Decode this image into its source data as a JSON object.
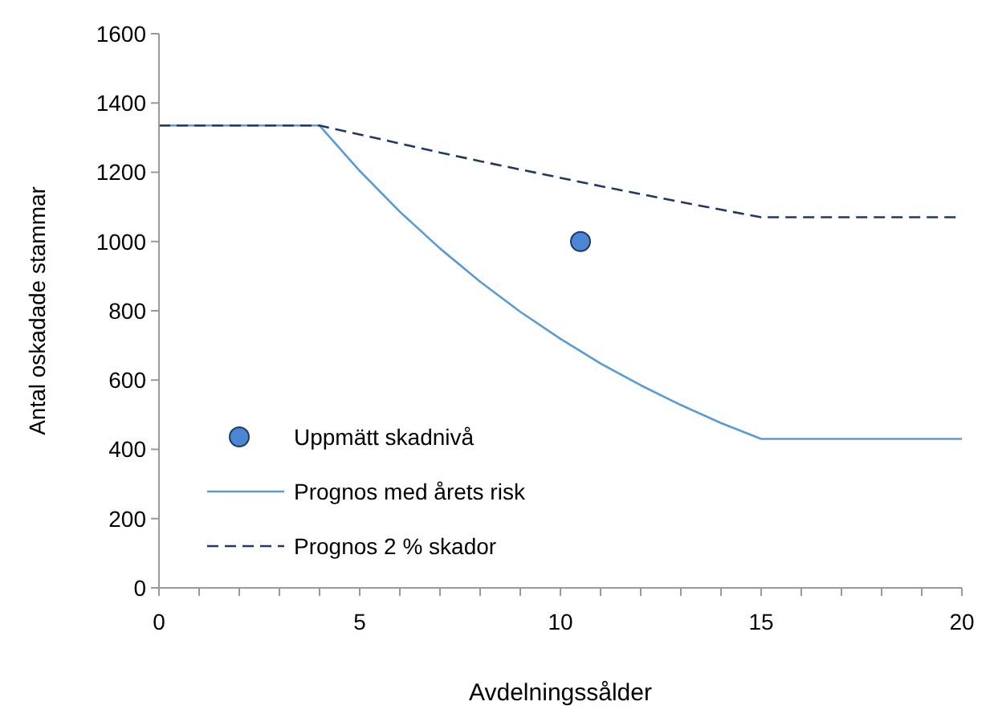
{
  "chart_data": {
    "type": "line",
    "xlabel": "Avdelningssålder",
    "ylabel": "Antal oskadade stammar",
    "xlim": [
      0,
      20
    ],
    "ylim": [
      0,
      1600
    ],
    "xticks": [
      0,
      {
        "value": 1,
        "label": null
      },
      {
        "value": 2,
        "label": null
      },
      {
        "value": 3,
        "label": null
      },
      {
        "value": 4,
        "label": null
      },
      5,
      {
        "value": 6,
        "label": null
      },
      {
        "value": 7,
        "label": null
      },
      {
        "value": 8,
        "label": null
      },
      {
        "value": 9,
        "label": null
      },
      10,
      {
        "value": 11,
        "label": null
      },
      {
        "value": 12,
        "label": null
      },
      {
        "value": 13,
        "label": null
      },
      {
        "value": 14,
        "label": null
      },
      15,
      {
        "value": 16,
        "label": null
      },
      {
        "value": 17,
        "label": null
      },
      {
        "value": 18,
        "label": null
      },
      {
        "value": 19,
        "label": null
      },
      20
    ],
    "yticks": [
      0,
      200,
      400,
      600,
      800,
      1000,
      1200,
      1400,
      1600
    ],
    "grid": false,
    "legend": "bottom left",
    "series": [
      {
        "name": "Uppmätt skadnivå",
        "type": "scatter",
        "marker": "circle",
        "color": "#4a86d4",
        "x": [
          10.5
        ],
        "values": [
          1000
        ]
      },
      {
        "name": "Prognos med årets risk",
        "line_style": "solid",
        "color": "#5b9bd5",
        "x": [
          0,
          1,
          2,
          3,
          4,
          5,
          6,
          7,
          8,
          9,
          10,
          11,
          12,
          13,
          14,
          15,
          16,
          17,
          18,
          19,
          20
        ],
        "values": [
          1335,
          1335,
          1335,
          1335,
          1335,
          1204,
          1086,
          980,
          884,
          797,
          719,
          648,
          585,
          528,
          476,
          430,
          430,
          430,
          430,
          430,
          430
        ]
      },
      {
        "name": "Prognos 2 % skador",
        "line_style": "dashed",
        "color": "#1f3864",
        "x": [
          0,
          1,
          2,
          3,
          4,
          5,
          6,
          7,
          8,
          9,
          10,
          11,
          12,
          13,
          14,
          15,
          16,
          17,
          18,
          19,
          20
        ],
        "values": [
          1335,
          1335,
          1335,
          1335,
          1335,
          1309,
          1283,
          1257,
          1232,
          1208,
          1184,
          1160,
          1137,
          1114,
          1092,
          1070,
          1070,
          1070,
          1070,
          1070,
          1070
        ]
      }
    ]
  }
}
